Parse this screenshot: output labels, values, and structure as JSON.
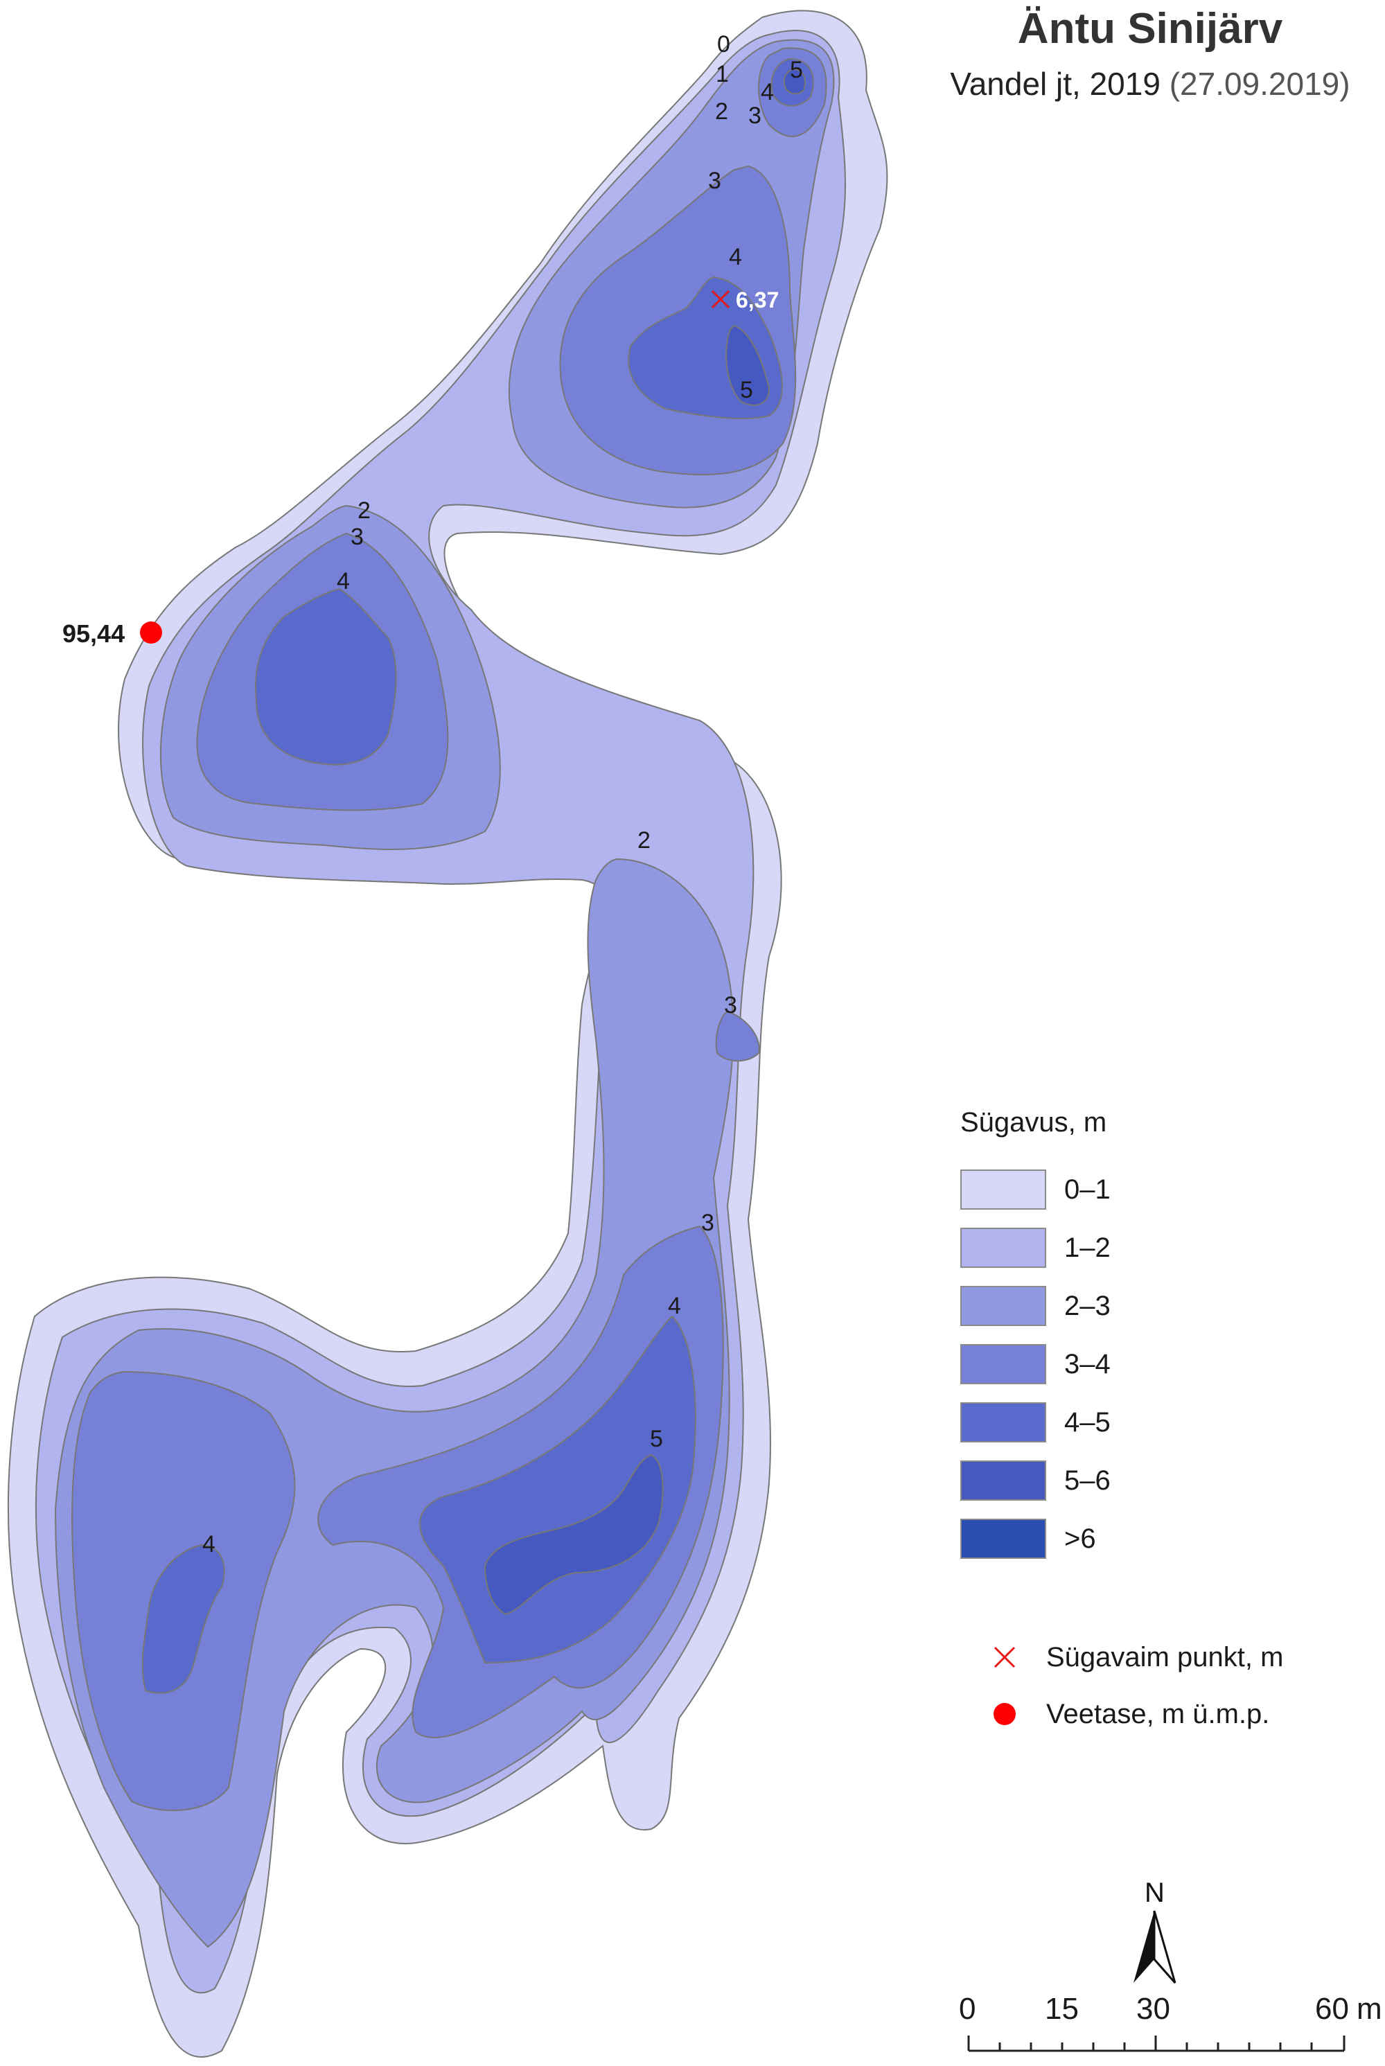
{
  "header": {
    "title": "Äntu Sinijärv",
    "subtitle_main": "Vandel jt, 2019 ",
    "subtitle_date": "(27.09.2019)"
  },
  "legend": {
    "title": "Sügavus, m",
    "classes": [
      {
        "label": "0–1",
        "color": "#d7d8f8"
      },
      {
        "label": "1–2",
        "color": "#b1b4ee"
      },
      {
        "label": "2–3",
        "color": "#9198e2"
      },
      {
        "label": "3–4",
        "color": "#7580d6"
      },
      {
        "label": "4–5",
        "color": "#5a6acc"
      },
      {
        "label": "5–6",
        "color": "#4659c0"
      },
      {
        "label": ">6",
        "color": "#2a4cb0"
      }
    ],
    "symbols": {
      "deepest": {
        "label": "Sügavaim punkt, m",
        "color": "#e81818"
      },
      "water_level": {
        "label": "Veetase, m ü.m.p.",
        "color": "#ff0000"
      }
    }
  },
  "annotations": {
    "deepest_value": "6,37",
    "water_level_value": "95,44"
  },
  "contour_labels": [
    "0",
    "1",
    "2",
    "3",
    "4",
    "5",
    "3",
    "4",
    "5",
    "2",
    "3",
    "4",
    "2",
    "3",
    "3",
    "4",
    "5",
    "4"
  ],
  "north_arrow": {
    "label": "N"
  },
  "scale_bar": {
    "ticks": [
      "0",
      "15",
      "30",
      "60"
    ],
    "unit": "m"
  }
}
